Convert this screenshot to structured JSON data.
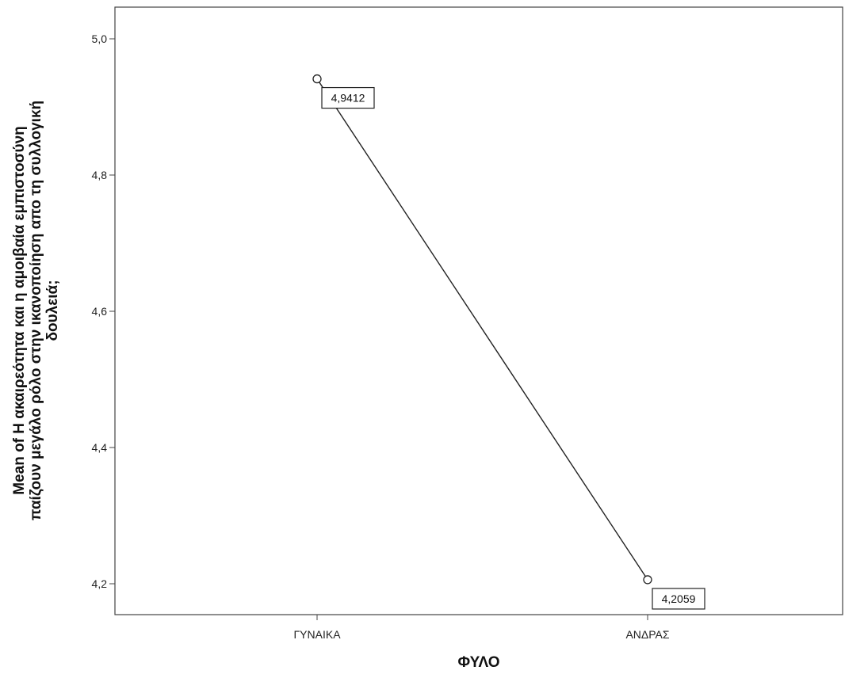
{
  "chart_data": {
    "type": "line",
    "categories": [
      "ΓΥΝΑΙΚΑ",
      "ΑΝΔΡΑΣ"
    ],
    "series": [
      {
        "values": [
          4.9412,
          4.2059
        ],
        "data_labels": [
          "4,9412",
          "4,2059"
        ]
      }
    ],
    "xlabel": "ΦΥΛΟ",
    "ylabel_lines": [
      "Mean of Η ακαιρεότητα και η αμοιβαία εμπιστοσύνη",
      "παίζουν μεγάλο ρόλο στην ικανοποίηση απο τη συλλογική",
      "δουλειά;"
    ],
    "ylim": [
      4.15,
      5.05
    ],
    "yticks": [
      4.2,
      4.4,
      4.6,
      4.8,
      5.0
    ],
    "ytick_labels": [
      "4,2",
      "4,4",
      "4,6",
      "4,8",
      "5,0"
    ],
    "grid": false,
    "legend": "none"
  }
}
